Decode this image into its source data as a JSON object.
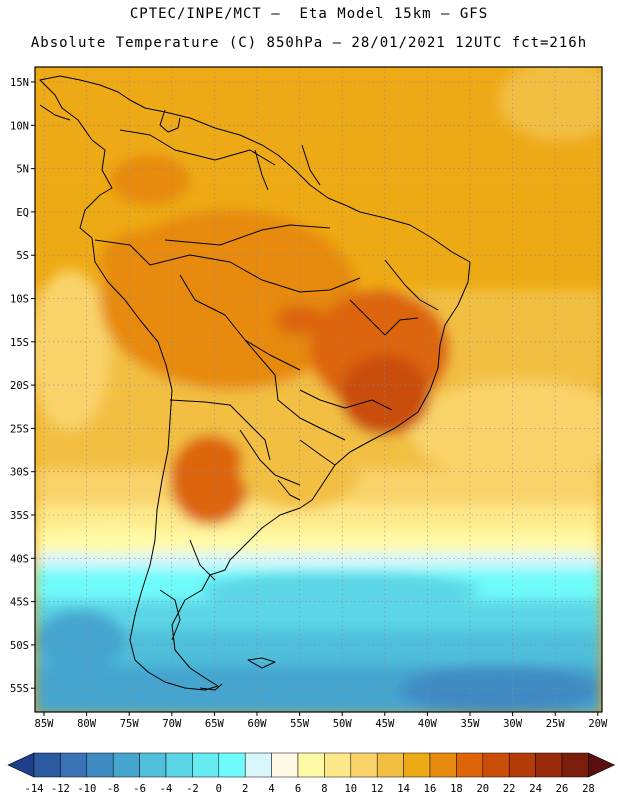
{
  "header": {
    "line1": "CPTEC/INPE/MCT –  Eta Model 15km – GFS",
    "line2": "Absolute Temperature (C) 850hPa – 28/01/2021 12UTC fct=216h"
  },
  "map": {
    "lat_labels": [
      "15N",
      "10N",
      "5N",
      "EQ",
      "5S",
      "10S",
      "15S",
      "20S",
      "25S",
      "30S",
      "35S",
      "40S",
      "45S",
      "50S",
      "55S"
    ],
    "lon_labels": [
      "85W",
      "80W",
      "75W",
      "70W",
      "65W",
      "60W",
      "55W",
      "50W",
      "45W",
      "40W",
      "35W",
      "30W",
      "25W",
      "20W"
    ]
  },
  "colorbar": {
    "labels": [
      "-14",
      "-12",
      "-10",
      "-8",
      "-6",
      "-4",
      "-2",
      "0",
      "2",
      "4",
      "6",
      "8",
      "10",
      "12",
      "14",
      "16",
      "18",
      "20",
      "22",
      "24",
      "26",
      "28"
    ],
    "colors": [
      "#1f3f8c",
      "#2c5aa0",
      "#3a73b8",
      "#3f8bc4",
      "#45a5cf",
      "#4fbfdc",
      "#5bd6e6",
      "#66ecf0",
      "#6ffbfb",
      "#d8f6fb",
      "#fff8e4",
      "#fffaa6",
      "#fde98a",
      "#f9d36a",
      "#f2bf43",
      "#eeaa14",
      "#e78a10",
      "#dd6508",
      "#c94e08",
      "#b23b08",
      "#992b0a",
      "#7a1d0a",
      "#5c0f0f"
    ]
  }
}
